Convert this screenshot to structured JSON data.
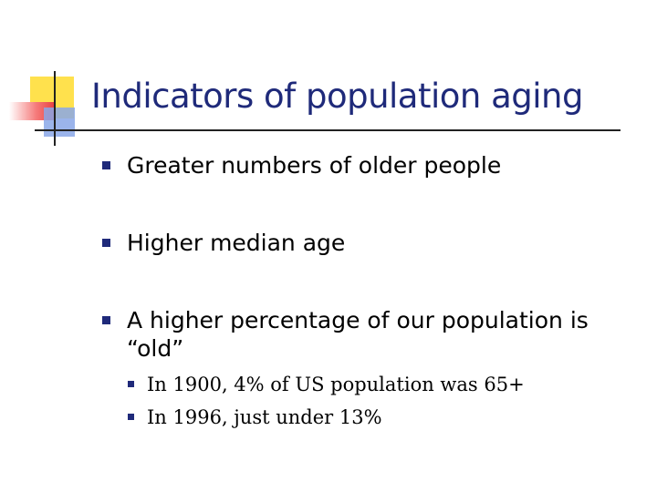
{
  "title": "Indicators of population aging",
  "bullets": [
    {
      "text": "Greater numbers of older people"
    },
    {
      "text": "Higher median age"
    },
    {
      "text": "A higher percentage of our population is “old”",
      "sub_bullets": [
        "In 1900, 4% of US population was 65+",
        "In 1996, just under 13%"
      ]
    }
  ]
}
